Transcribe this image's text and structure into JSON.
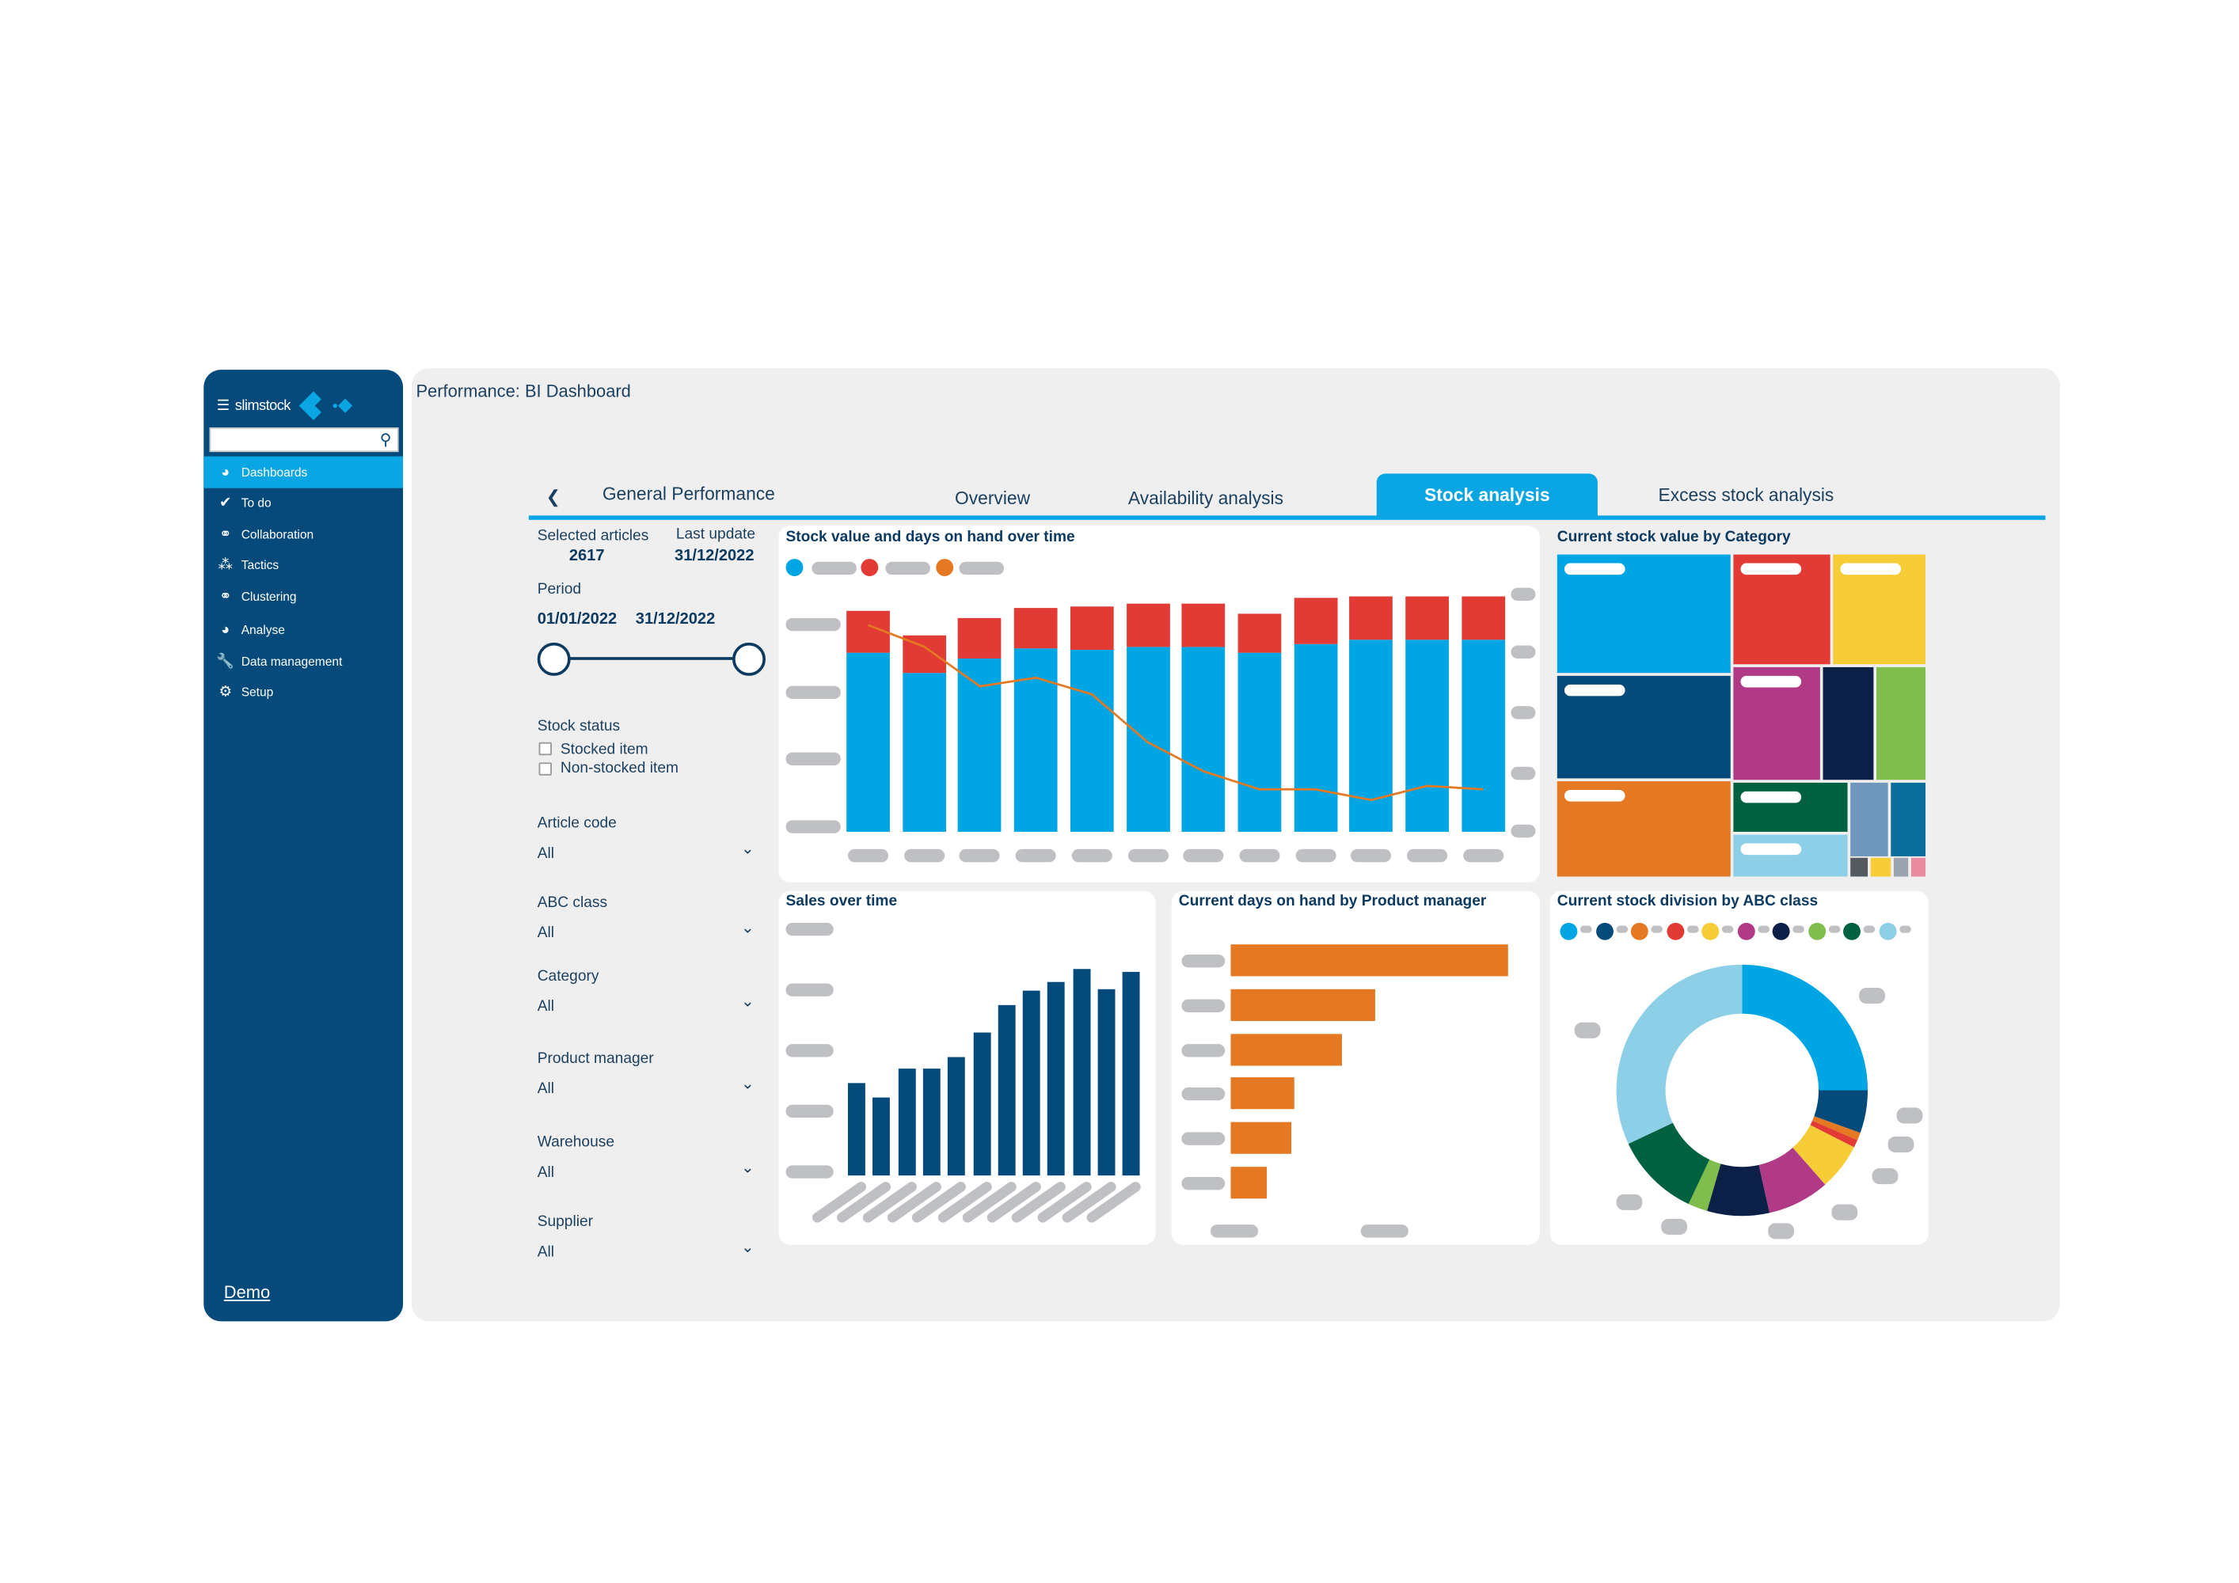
{
  "sidebar": {
    "brand": "slimstock",
    "menu_icon": "hamburger-icon",
    "search_placeholder": "",
    "items": [
      {
        "label": "Dashboards",
        "icon": "gauge-icon",
        "active": true
      },
      {
        "label": "To do",
        "icon": "check-icon"
      },
      {
        "label": "Collaboration",
        "icon": "share-nodes-icon"
      },
      {
        "label": "Tactics",
        "icon": "tactics-icon"
      },
      {
        "label": "Clustering",
        "icon": "venn-icon"
      },
      {
        "label": "Analyse",
        "icon": "pie-icon"
      },
      {
        "label": "Data management",
        "icon": "wrench-icon"
      },
      {
        "label": "Setup",
        "icon": "gear-icon"
      }
    ],
    "footer": "Demo"
  },
  "header": {
    "title": "Performance: BI Dashboard"
  },
  "tabs": {
    "back": "General Performance",
    "items": [
      "Overview",
      "Availability analysis",
      "Stock analysis",
      "Excess stock analysis"
    ],
    "active": "Stock analysis"
  },
  "filters": {
    "selected_articles_label": "Selected articles",
    "selected_articles": "2617",
    "last_update_label": "Last update",
    "last_update": "31/12/2022",
    "period_label": "Period",
    "period_start": "01/01/2022",
    "period_end": "31/12/2022",
    "stock_status_label": "Stock status",
    "stock_status_options": [
      "Stocked item",
      "Non-stocked item"
    ],
    "dropdowns": [
      {
        "label": "Article code",
        "value": "All"
      },
      {
        "label": "ABC class",
        "value": "All"
      },
      {
        "label": "Category",
        "value": "All"
      },
      {
        "label": "Product manager",
        "value": "All"
      },
      {
        "label": "Warehouse",
        "value": "All"
      },
      {
        "label": "Supplier",
        "value": "All"
      }
    ]
  },
  "colors": {
    "accent": "#0aa5e3",
    "sidebar": "#054a7a",
    "blue": "#00a5e3",
    "red": "#e23a35",
    "orange": "#e57822",
    "navy_bar": "#044a7a"
  },
  "chart_data": [
    {
      "type": "bar",
      "title": "Stock value and days on hand over time",
      "stacked": true,
      "ylim": [
        0,
        100
      ],
      "series": [
        {
          "color": "#00a5e3",
          "values": [
            72.7,
            64.1,
            70.1,
            74.0,
            73.8,
            75.1,
            75.1,
            72.7,
            75.9,
            77.6,
            77.6,
            77.6
          ]
        },
        {
          "color": "#e23a35",
          "values": [
            16.6,
            15.3,
            16.2,
            16.5,
            17.6,
            17.4,
            17.4,
            15.8,
            18.6,
            17.5,
            17.5,
            17.5
          ]
        },
        {
          "color": "#e57822",
          "type": "line",
          "values": [
            83.7,
            75.0,
            58.9,
            62.4,
            55.7,
            36.3,
            24.5,
            17.2,
            17.2,
            12.9,
            18.6,
            17.2
          ]
        }
      ]
    },
    {
      "type": "treemap",
      "title": "Current stock value by Category",
      "values": [
        {
          "color": "#00a5e3",
          "value": 9840
        },
        {
          "color": "#e23a35",
          "value": 5092
        },
        {
          "color": "#f6cd37",
          "value": 4864
        },
        {
          "color": "#044a7a",
          "value": 8520
        },
        {
          "color": "#b03a86",
          "value": 4680
        },
        {
          "color": "#0c1f47",
          "value": 2730
        },
        {
          "color": "#7fbd4d",
          "value": 2652
        },
        {
          "color": "#e57822",
          "value": 7920
        },
        {
          "color": "#006140",
          "value": 2686
        },
        {
          "color": "#8ecfe8",
          "value": 2291
        },
        {
          "color": "#6f97bb",
          "value": 1326
        },
        {
          "color": "#0a6e9c",
          "value": 1224
        },
        {
          "color": "#555a60",
          "value": 200
        },
        {
          "color": "#f6cd37",
          "value": 180
        },
        {
          "color": "#9aa4ae",
          "value": 120
        },
        {
          "color": "#e88aa0",
          "value": 80
        }
      ]
    },
    {
      "type": "bar",
      "title": "Sales over time",
      "ylim": [
        0,
        100
      ],
      "values": [
        37.6,
        31.3,
        43.5,
        43.5,
        47.9,
        58.0,
        69.1,
        74.6,
        78.2,
        83.9,
        75.6,
        82.2
      ],
      "color": "#044a7a"
    },
    {
      "type": "bar",
      "orientation": "horizontal",
      "title": "Current days on hand by Product manager",
      "xlim": [
        0,
        100
      ],
      "values": [
        100,
        52,
        40,
        23,
        22,
        13
      ],
      "color": "#e57822"
    },
    {
      "type": "pie",
      "donut": true,
      "title": "Current stock division by ABC class",
      "legend": "top",
      "slices": [
        {
          "color": "#00a5e3",
          "value": 25
        },
        {
          "color": "#044a7a",
          "value": 5.5
        },
        {
          "color": "#e57822",
          "value": 1
        },
        {
          "color": "#e23a35",
          "value": 1
        },
        {
          "color": "#f6cd37",
          "value": 6
        },
        {
          "color": "#b03a86",
          "value": 8
        },
        {
          "color": "#0c1f47",
          "value": 8
        },
        {
          "color": "#7fbd4d",
          "value": 2.5
        },
        {
          "color": "#006140",
          "value": 11
        },
        {
          "color": "#8ecfe8",
          "value": 32
        }
      ]
    }
  ]
}
